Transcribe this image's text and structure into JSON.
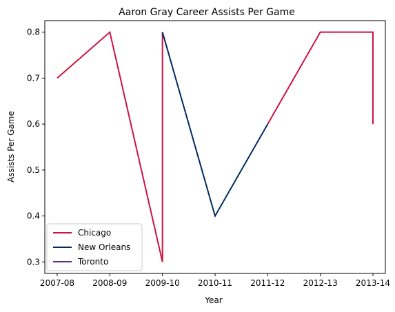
{
  "chart_data": {
    "type": "line",
    "title": "Aaron Gray Career Assists Per Game",
    "xlabel": "Year",
    "ylabel": "Assists Per Game",
    "categories": [
      "2007-08",
      "2008-09",
      "2009-10",
      "2010-11",
      "2011-12",
      "2012-13",
      "2013-14"
    ],
    "yticks": [
      "0.3",
      "0.4",
      "0.5",
      "0.6",
      "0.7",
      "0.8"
    ],
    "ylim": [
      0.275,
      0.825
    ],
    "grid": false,
    "legend_position": "lower-left",
    "series": [
      {
        "name": "Chicago",
        "color": "#CE1141",
        "points": [
          {
            "x": "2007-08",
            "y": 0.7
          },
          {
            "x": "2008-09",
            "y": 0.8
          },
          {
            "x": "2009-10",
            "y": 0.3
          },
          {
            "x": "2009-10",
            "y": 0.8
          }
        ]
      },
      {
        "name": "New Orleans",
        "color": "#002B5C",
        "points": [
          {
            "x": "2009-10",
            "y": 0.8
          },
          {
            "x": "2010-11",
            "y": 0.4
          },
          {
            "x": "2011-12",
            "y": 0.6
          }
        ]
      },
      {
        "name": "Chicago-continued",
        "legend": false,
        "color": "#CE1141",
        "points": [
          {
            "x": "2011-12",
            "y": 0.6
          },
          {
            "x": "2012-13",
            "y": 0.8
          },
          {
            "x": "2013-14",
            "y": 0.8
          },
          {
            "x": "2013-14",
            "y": 0.6
          }
        ]
      }
    ],
    "legend": [
      {
        "name": "Chicago",
        "color": "#CE1141"
      },
      {
        "name": "New Orleans",
        "color": "#002B5C"
      },
      {
        "name": "Toronto",
        "color": "#5A2D81"
      }
    ]
  }
}
